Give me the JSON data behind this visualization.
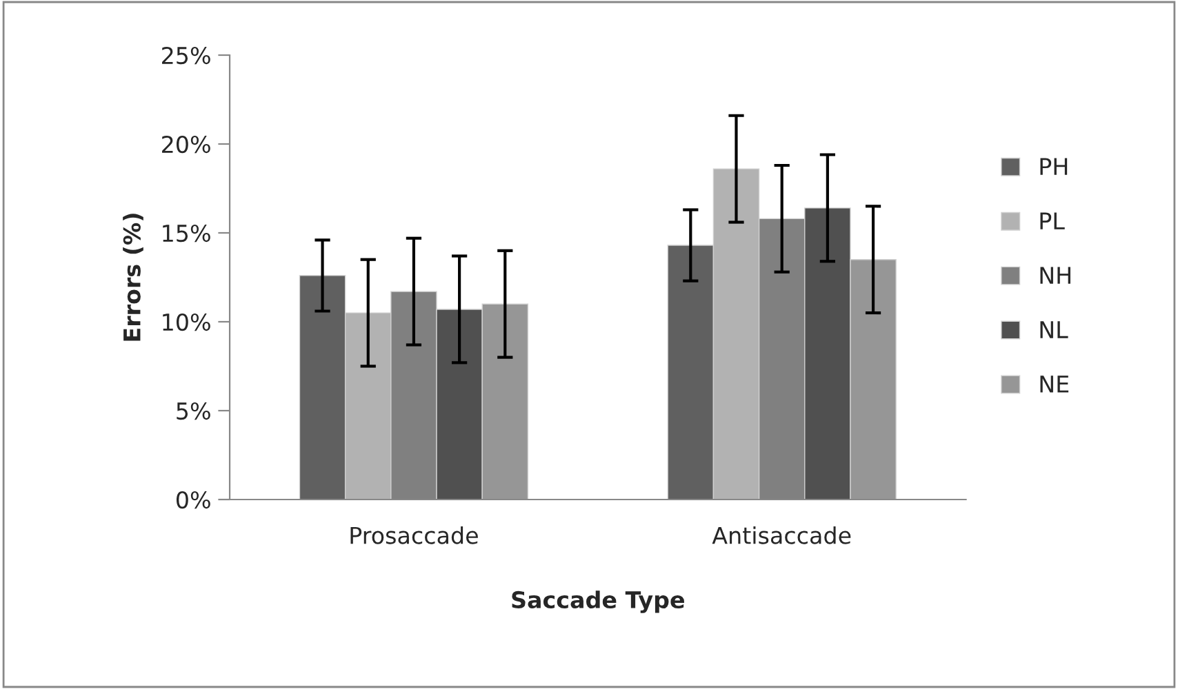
{
  "chart_data": {
    "type": "bar",
    "xlabel": "Saccade Type",
    "ylabel": "Errors (%)",
    "categories": [
      "Prosaccade",
      "Antisaccade"
    ],
    "series": [
      {
        "name": "PH",
        "color": "#606060",
        "values": [
          12.6,
          14.3
        ],
        "errors": [
          2.0,
          2.0
        ]
      },
      {
        "name": "PL",
        "color": "#b2b2b2",
        "values": [
          10.5,
          18.6
        ],
        "errors": [
          3.0,
          3.0
        ]
      },
      {
        "name": "NH",
        "color": "#808080",
        "values": [
          11.7,
          15.8
        ],
        "errors": [
          3.0,
          3.0
        ]
      },
      {
        "name": "NL",
        "color": "#505050",
        "values": [
          10.7,
          16.4
        ],
        "errors": [
          3.0,
          3.0
        ]
      },
      {
        "name": "NE",
        "color": "#969696",
        "values": [
          11.0,
          13.5
        ],
        "errors": [
          3.0,
          3.0
        ]
      }
    ],
    "ylim": [
      0,
      25
    ],
    "yticks": [
      {
        "value": 0,
        "label": "0%"
      },
      {
        "value": 5,
        "label": "5%"
      },
      {
        "value": 10,
        "label": "10%"
      },
      {
        "value": 15,
        "label": "15%"
      },
      {
        "value": 20,
        "label": "20%"
      },
      {
        "value": 25,
        "label": "25%"
      }
    ],
    "grid": false,
    "legend": "right"
  }
}
